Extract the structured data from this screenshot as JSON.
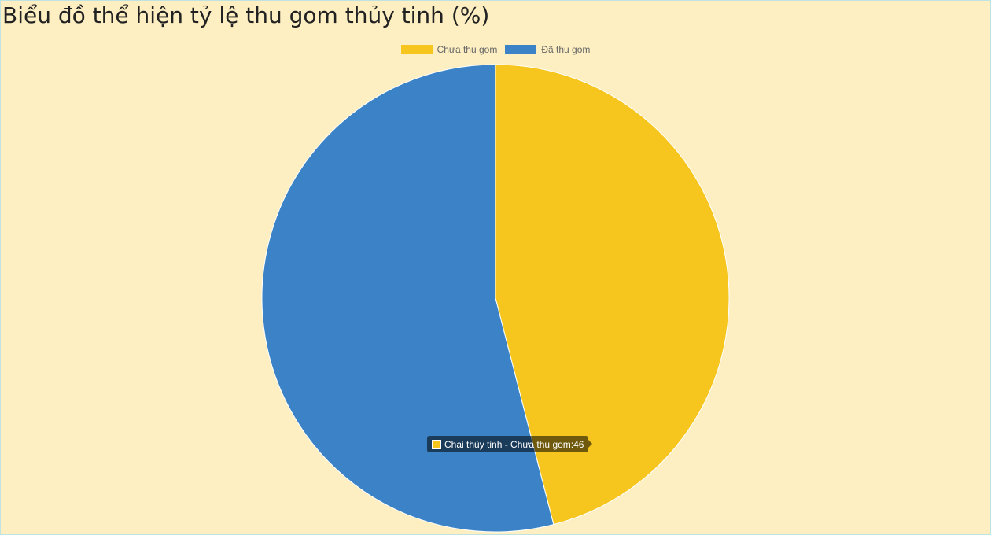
{
  "chart_data": {
    "type": "pie",
    "title": "Biểu đồ thể hiện tỷ lệ thu gom thủy tinh (%)",
    "categories": [
      "Chưa thu gom",
      "Đã thu gom"
    ],
    "values": [
      46,
      54
    ],
    "colors": [
      "#f6c61e",
      "#3b83c6"
    ],
    "legend_position": "top",
    "tooltip": {
      "text": "Chai thủy tinh - Chưa thu gom:46",
      "swatch_color": "#f6c61e"
    }
  }
}
